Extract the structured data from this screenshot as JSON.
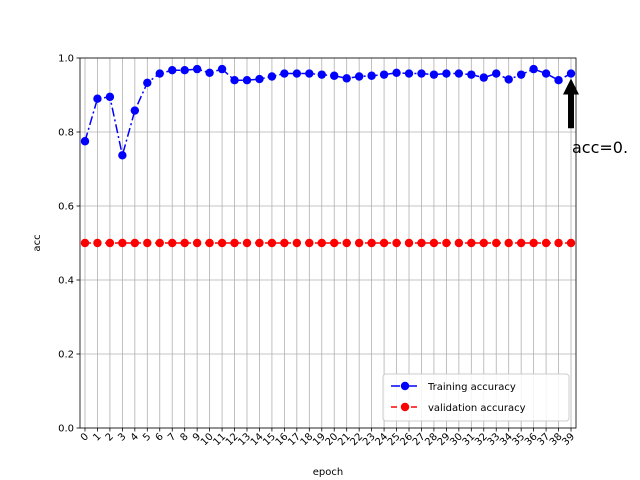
{
  "chart_data": {
    "type": "line",
    "xlabel": "epoch",
    "ylabel": "acc",
    "xlim": [
      0,
      39
    ],
    "ylim": [
      0.0,
      1.0
    ],
    "x": [
      0,
      1,
      2,
      3,
      4,
      5,
      6,
      7,
      8,
      9,
      10,
      11,
      12,
      13,
      14,
      15,
      16,
      17,
      18,
      19,
      20,
      21,
      22,
      23,
      24,
      25,
      26,
      27,
      28,
      29,
      30,
      31,
      32,
      33,
      34,
      35,
      36,
      37,
      38,
      39
    ],
    "x_tick_labels": [
      "0",
      "1",
      "2",
      "3",
      "4",
      "5",
      "6",
      "7",
      "8",
      "9",
      "10",
      "11",
      "12",
      "13",
      "14",
      "15",
      "16",
      "17",
      "18",
      "19",
      "20",
      "21",
      "22",
      "23",
      "24",
      "25",
      "26",
      "27",
      "28",
      "29",
      "30",
      "31",
      "32",
      "33",
      "34",
      "35",
      "36",
      "37",
      "38",
      "39"
    ],
    "y_ticks": [
      0.0,
      0.2,
      0.4,
      0.6,
      0.8,
      1.0
    ],
    "y_tick_labels": [
      "0.0",
      "0.2",
      "0.4",
      "0.6",
      "0.8",
      "1.0"
    ],
    "grid": true,
    "legend_position": "lower-right",
    "series": [
      {
        "name": "Training accuracy",
        "color": "#0000ff",
        "line_style": "dashdot",
        "marker": "circle",
        "values": [
          0.775,
          0.89,
          0.895,
          0.737,
          0.858,
          0.933,
          0.958,
          0.967,
          0.967,
          0.97,
          0.96,
          0.97,
          0.94,
          0.94,
          0.943,
          0.95,
          0.958,
          0.958,
          0.958,
          0.955,
          0.952,
          0.945,
          0.95,
          0.952,
          0.955,
          0.96,
          0.958,
          0.958,
          0.955,
          0.958,
          0.958,
          0.955,
          0.947,
          0.958,
          0.942,
          0.955,
          0.97,
          0.958,
          0.94,
          0.958
        ]
      },
      {
        "name": "validation accuracy",
        "color": "#ff0000",
        "line_style": "dashed",
        "marker": "circle",
        "values": [
          0.5,
          0.5,
          0.5,
          0.5,
          0.5,
          0.5,
          0.5,
          0.5,
          0.5,
          0.5,
          0.5,
          0.5,
          0.5,
          0.5,
          0.5,
          0.5,
          0.5,
          0.5,
          0.5,
          0.5,
          0.5,
          0.5,
          0.5,
          0.5,
          0.5,
          0.5,
          0.5,
          0.5,
          0.5,
          0.5,
          0.5,
          0.5,
          0.5,
          0.5,
          0.5,
          0.5,
          0.5,
          0.5,
          0.5,
          0.5
        ]
      }
    ],
    "annotations": [
      {
        "text": "acc=0.",
        "x": 39,
        "y": 0.958,
        "arrow": true,
        "arrow_color": "#000000"
      }
    ]
  }
}
